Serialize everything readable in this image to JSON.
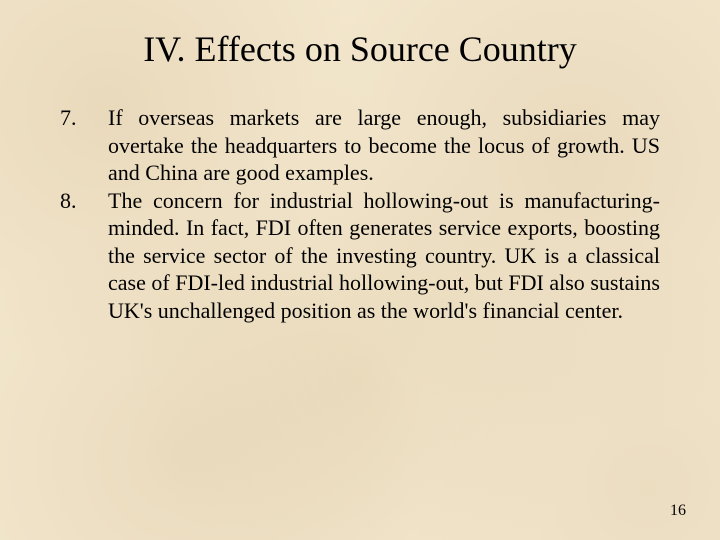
{
  "title": "IV. Effects on Source Country",
  "items": [
    {
      "number": "7.",
      "text": "If overseas markets are large enough, subsidiaries may overtake the headquarters to become the locus of growth. US and China are good examples."
    },
    {
      "number": "8.",
      "text": "The concern for industrial hollowing-out is manufacturing-minded. In fact, FDI often generates service exports, boosting the service sector of the investing country. UK is a classical case of FDI-led industrial hollowing-out, but FDI also sustains UK's unchallenged position as the world's financial center."
    }
  ],
  "page_number": "16",
  "colors": {
    "background": "#f2e6cc",
    "text": "#000000"
  },
  "typography": {
    "title_fontsize": 36,
    "body_fontsize": 22,
    "pagenum_fontsize": 16,
    "font_family": "Times New Roman"
  }
}
